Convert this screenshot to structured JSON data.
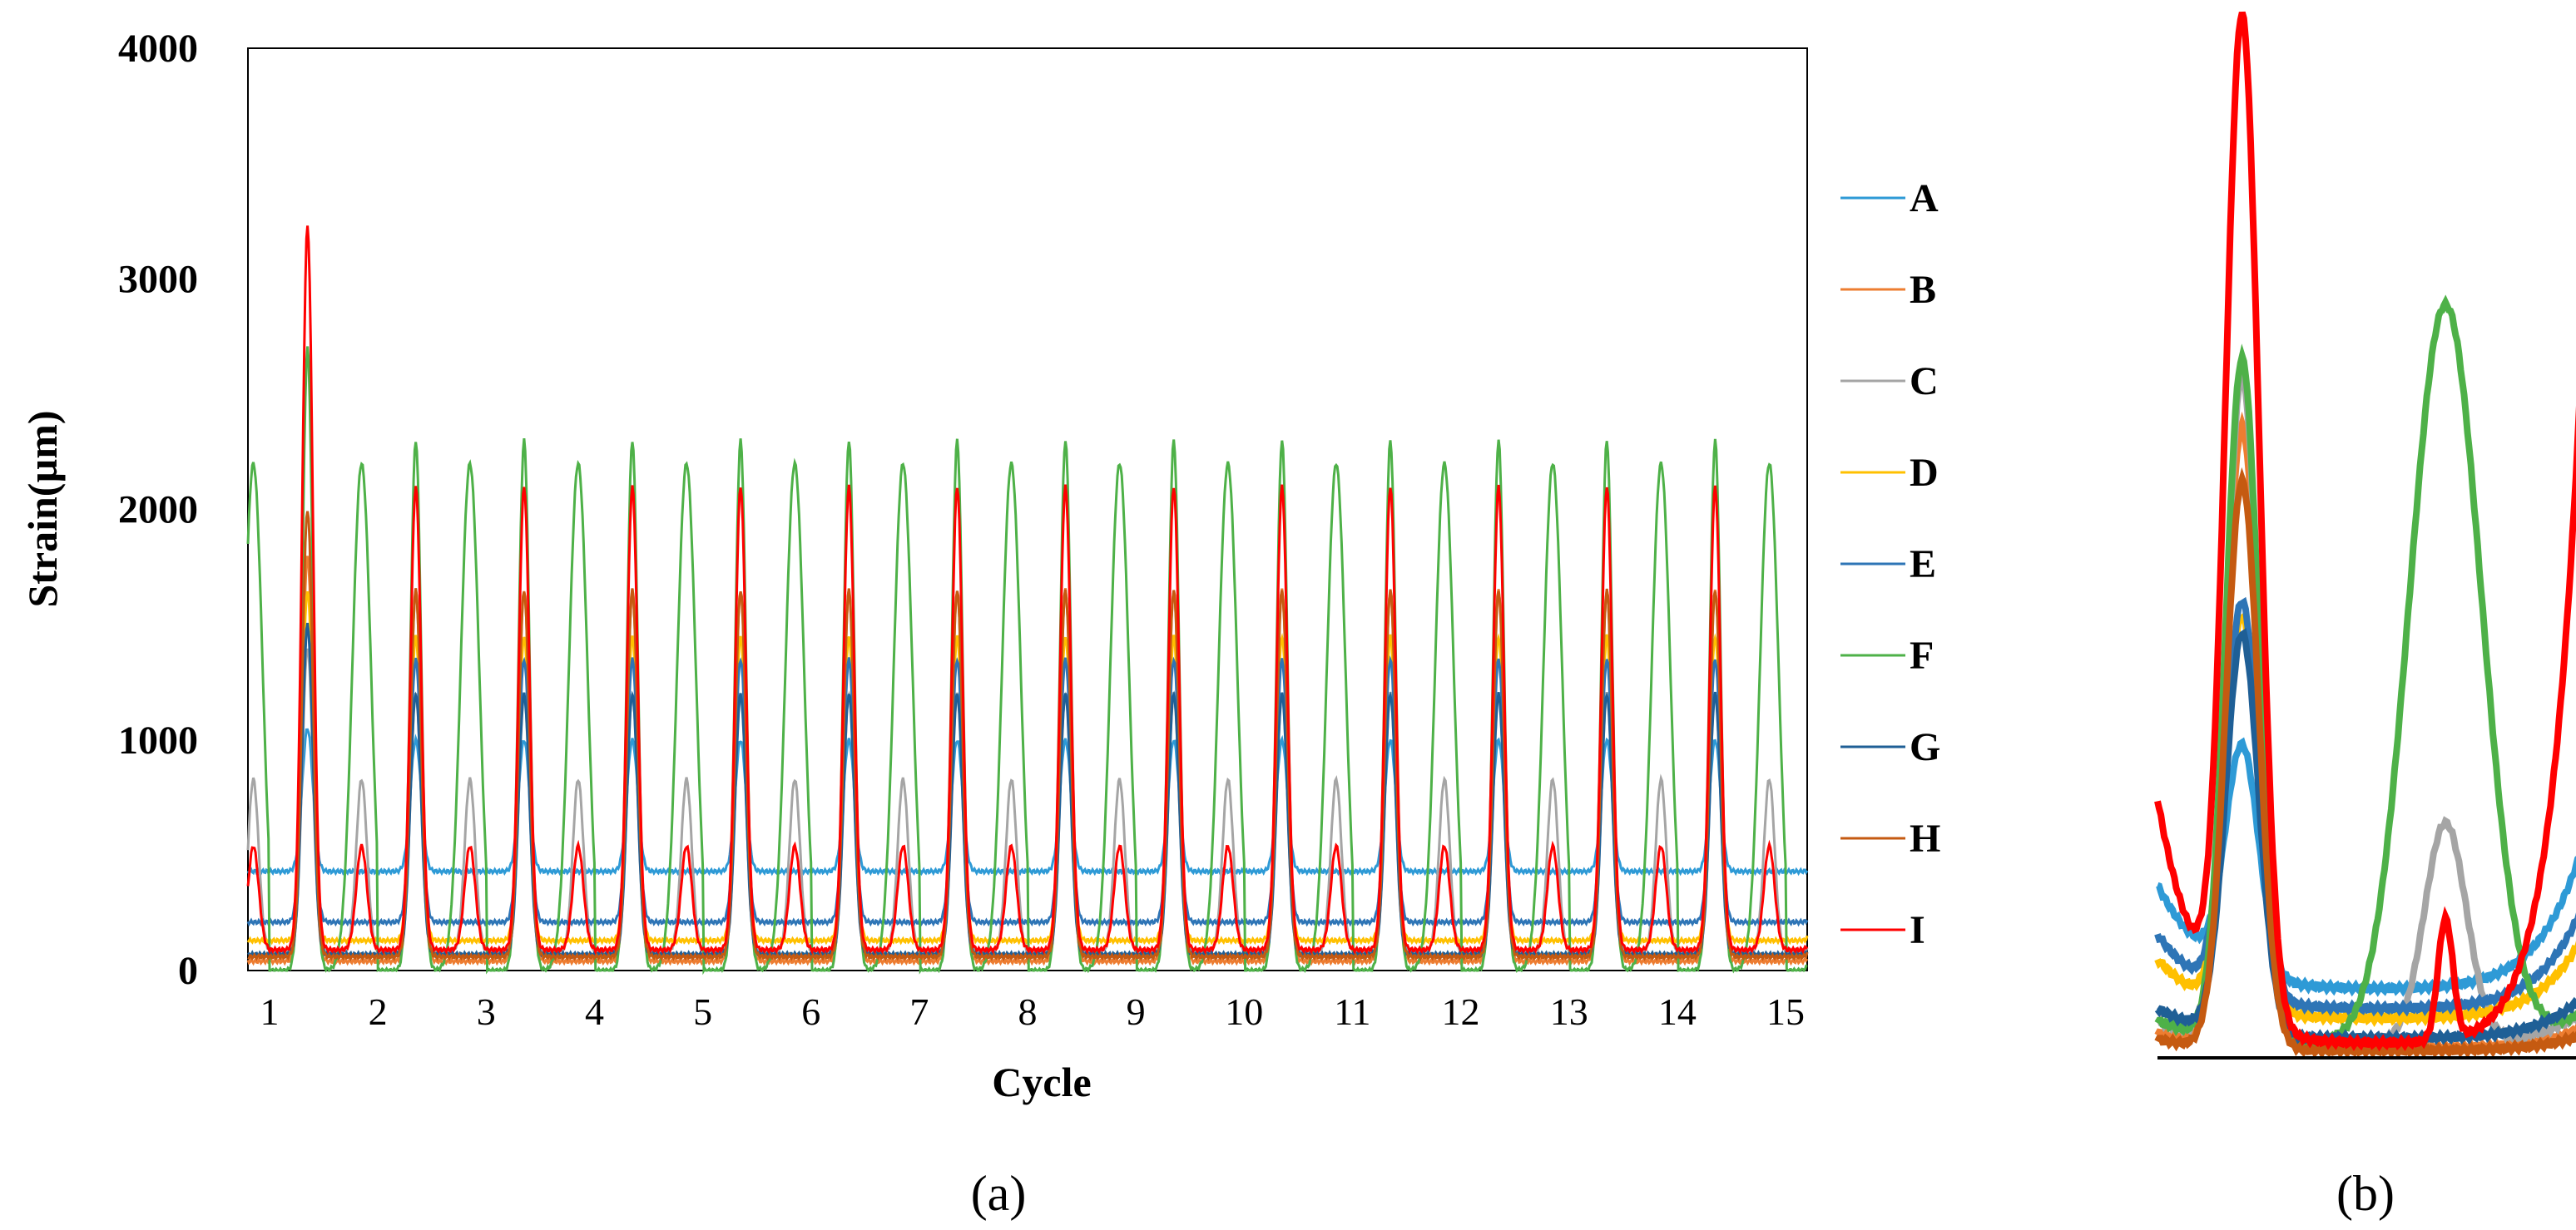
{
  "chart_data": [
    {
      "panel": "a",
      "type": "line",
      "panel_label": "(a)",
      "xlabel": "Cycle",
      "ylabel": "Strain(µm)",
      "xlim": [
        0.8,
        15.2
      ],
      "ylim": [
        0,
        4000
      ],
      "yticks": [
        "0",
        "1000",
        "2000",
        "3000",
        "4000"
      ],
      "xticks": [
        "1",
        "2",
        "3",
        "4",
        "5",
        "6",
        "7",
        "8",
        "9",
        "10",
        "11",
        "12",
        "13",
        "14",
        "15"
      ],
      "grid": false,
      "legend": "right",
      "cycles": 15,
      "series": [
        {
          "name": "A",
          "color": "#2e9ad6",
          "peak_first": 1050,
          "peak": 1000,
          "base": 430,
          "secondary": 0
        },
        {
          "name": "B",
          "color": "#ed7d31",
          "peak_first": 1800,
          "peak": 1650,
          "base": 40,
          "secondary": 0
        },
        {
          "name": "C",
          "color": "#a5a5a5",
          "peak_first": 1400,
          "peak": 1200,
          "base": 80,
          "secondary": 830
        },
        {
          "name": "D",
          "color": "#ffc000",
          "peak_first": 1650,
          "peak": 1450,
          "base": 130,
          "secondary": 0
        },
        {
          "name": "E",
          "color": "#2e75b6",
          "peak_first": 1500,
          "peak": 1350,
          "base": 210,
          "secondary": 0
        },
        {
          "name": "F",
          "color": "#4eb148",
          "peak_first": 2700,
          "peak": 2300,
          "base": 0,
          "secondary": 2200
        },
        {
          "name": "G",
          "color": "#1f5f96",
          "peak_first": 1500,
          "peak": 1200,
          "base": 70,
          "secondary": 0
        },
        {
          "name": "H",
          "color": "#c55a11",
          "peak_first": 2000,
          "peak": 1650,
          "base": 60,
          "secondary": 0
        },
        {
          "name": "I",
          "color": "#ff0000",
          "peak_first": 3230,
          "peak": 2100,
          "base": 90,
          "secondary": 540
        }
      ]
    },
    {
      "panel": "b",
      "type": "line",
      "panel_label": "(b)",
      "description_scope": "single cycle close-up, no axes labels",
      "series": [
        {
          "name": "A",
          "color": "#2e9ad6",
          "peak": 1200,
          "base": 280,
          "secondary": 0
        },
        {
          "name": "B",
          "color": "#ed7d31",
          "peak": 2550,
          "base": 40,
          "secondary": 0
        },
        {
          "name": "C",
          "color": "#a5a5a5",
          "peak": 2750,
          "base": 60,
          "secondary": 950
        },
        {
          "name": "D",
          "color": "#ffc000",
          "peak": 1750,
          "base": 160,
          "secondary": 0
        },
        {
          "name": "E",
          "color": "#2e75b6",
          "peak": 1800,
          "base": 200,
          "secondary": 0
        },
        {
          "name": "F",
          "color": "#4eb148",
          "peak": 2820,
          "base": 60,
          "secondary": 3050
        },
        {
          "name": "G",
          "color": "#1f5f96",
          "peak": 1700,
          "base": 80,
          "secondary": 0
        },
        {
          "name": "H",
          "color": "#c55a11",
          "peak": 2330,
          "base": 30,
          "secondary": 0
        },
        {
          "name": "I",
          "color": "#ff0000",
          "peak": 4120,
          "base": 60,
          "secondary": 550
        }
      ]
    }
  ]
}
